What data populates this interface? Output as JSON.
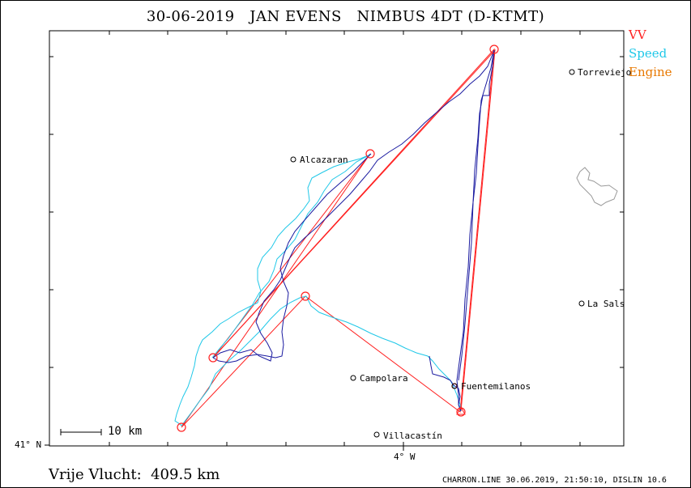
{
  "header": {
    "date": "30-06-2019",
    "pilot": "JAN EVENS",
    "glider": "NIMBUS 4DT (D-KTMT)"
  },
  "legend": [
    {
      "label": "VV",
      "color": "#ff2020"
    },
    {
      "label": "Speed",
      "color": "#20c8e8"
    },
    {
      "label": "Engine",
      "color": "#e87800"
    }
  ],
  "axis": {
    "lat_label": "41° N",
    "lon_label": "4° W"
  },
  "scale_bar": "10 km",
  "towns": [
    "Torreviejo",
    "Alcazaran",
    "La Sals",
    "Campolara",
    "Fuentemilanos",
    "Villacastín"
  ],
  "distance_label": "Vrije Vlucht:",
  "distance_value": "409.5 km",
  "footer": "CHARRON.LINE 30.06.2019, 21:50:10, DISLIN 10.6",
  "colors": {
    "task": "#ff2020",
    "speed_track": "#20c8e8",
    "track": "#1a1aa0",
    "lake": "#999999"
  }
}
